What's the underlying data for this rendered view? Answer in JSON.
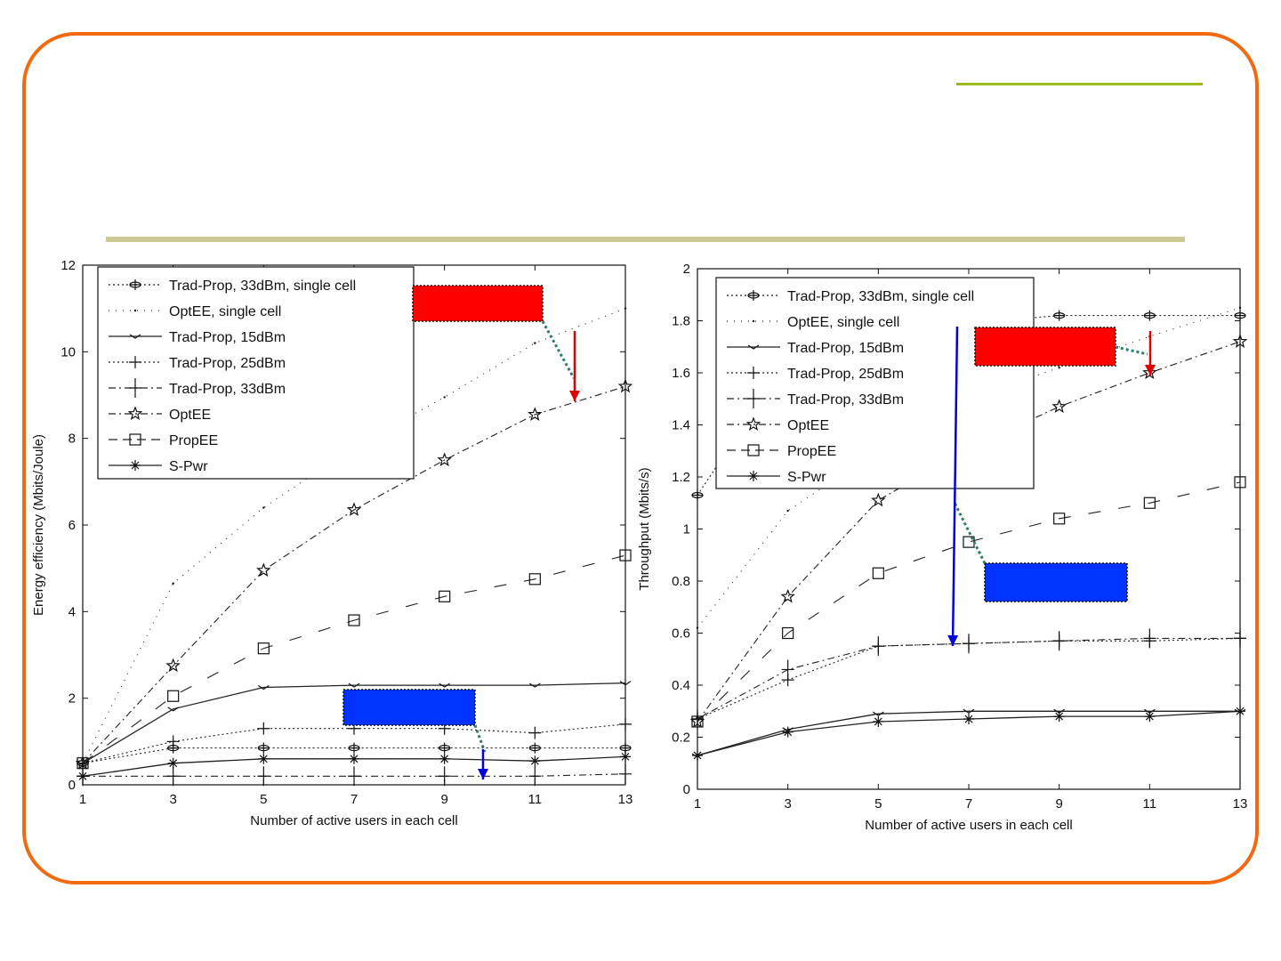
{
  "colors": {
    "frame": "#f26a10",
    "accent_top": "#9bbb1a",
    "accent_mid": "#c9c991",
    "red_box": "#ff0000",
    "blue_box": "#0033ff",
    "red_arrow": "#e00000",
    "blue_arrow": "#0000dd",
    "callout_line": "#2e7d6e"
  },
  "chart_data": [
    {
      "type": "line",
      "xlabel": "Number of active users in each cell",
      "ylabel": "Energy efficiency (Mbits/Joule)",
      "xlim": [
        1,
        13
      ],
      "ylim": [
        0,
        12
      ],
      "xticks": [
        1,
        3,
        5,
        7,
        9,
        11,
        13
      ],
      "yticks": [
        0,
        2,
        4,
        6,
        8,
        10,
        12
      ],
      "legend_position": "top-left",
      "x": [
        1,
        3,
        5,
        7,
        9,
        11,
        13
      ],
      "series": [
        {
          "name": "Trad-Prop, 33dBm, single cell",
          "style": "dotted",
          "marker": "plus-circle",
          "values": [
            0.5,
            0.85,
            0.85,
            0.85,
            0.85,
            0.85,
            0.85
          ]
        },
        {
          "name": "OptEE, single cell",
          "style": "solid-light",
          "marker": "dot",
          "values": [
            0.5,
            4.65,
            6.4,
            7.8,
            8.95,
            10.2,
            11.0
          ]
        },
        {
          "name": "Trad-Prop, 15dBm",
          "style": "solid",
          "marker": "tri",
          "values": [
            0.5,
            1.75,
            2.25,
            2.3,
            2.3,
            2.3,
            2.35
          ]
        },
        {
          "name": "Trad-Prop, 25dBm",
          "style": "dotted",
          "marker": "plus",
          "values": [
            0.5,
            1.0,
            1.3,
            1.3,
            1.3,
            1.2,
            1.4
          ]
        },
        {
          "name": "Trad-Prop, 33dBm",
          "style": "dashdot",
          "marker": "plus-tall",
          "values": [
            0.2,
            0.2,
            0.2,
            0.2,
            0.2,
            0.2,
            0.25
          ]
        },
        {
          "name": "OptEE",
          "style": "dashdot",
          "marker": "star",
          "values": [
            0.5,
            2.75,
            4.95,
            6.35,
            7.5,
            8.55,
            9.2
          ]
        },
        {
          "name": "PropEE",
          "style": "dashed",
          "marker": "square",
          "values": [
            0.5,
            2.05,
            3.15,
            3.8,
            4.35,
            4.75,
            5.3
          ]
        },
        {
          "name": "S-Pwr",
          "style": "solid",
          "marker": "asterisk",
          "values": [
            0.2,
            0.5,
            0.6,
            0.6,
            0.6,
            0.55,
            0.65
          ]
        }
      ]
    },
    {
      "type": "line",
      "xlabel": "Number of active users in each cell",
      "ylabel": "Throughput (Mbits/s)",
      "xlim": [
        1,
        13
      ],
      "ylim": [
        0,
        2
      ],
      "xticks": [
        1,
        3,
        5,
        7,
        9,
        11,
        13
      ],
      "yticks": [
        0,
        0.2,
        0.4,
        0.6,
        0.8,
        1,
        1.2,
        1.4,
        1.6,
        1.8,
        2
      ],
      "legend_position": "top-left",
      "x": [
        1,
        3,
        5,
        7,
        9,
        11,
        13
      ],
      "series": [
        {
          "name": "Trad-Prop, 33dBm, single cell",
          "style": "dotted",
          "marker": "plus-circle",
          "values": [
            1.13,
            1.65,
            1.72,
            1.79,
            1.82,
            1.82,
            1.82
          ]
        },
        {
          "name": "OptEE, single cell",
          "style": "solid-light",
          "marker": "dot",
          "values": [
            0.62,
            1.07,
            1.3,
            1.5,
            1.62,
            1.74,
            1.85
          ]
        },
        {
          "name": "Trad-Prop, 15dBm",
          "style": "solid",
          "marker": "tri",
          "values": [
            0.13,
            0.23,
            0.29,
            0.3,
            0.3,
            0.3,
            0.3
          ]
        },
        {
          "name": "Trad-Prop, 25dBm",
          "style": "dotted",
          "marker": "plus",
          "values": [
            0.27,
            0.42,
            0.55,
            0.56,
            0.57,
            0.57,
            0.58
          ]
        },
        {
          "name": "Trad-Prop, 33dBm",
          "style": "dashdot",
          "marker": "plus-tall",
          "values": [
            0.27,
            0.46,
            0.55,
            0.56,
            0.57,
            0.58,
            0.58
          ]
        },
        {
          "name": "OptEE",
          "style": "dashdot",
          "marker": "star",
          "values": [
            0.26,
            0.74,
            1.11,
            1.31,
            1.47,
            1.6,
            1.72
          ]
        },
        {
          "name": "PropEE",
          "style": "dashed",
          "marker": "square",
          "values": [
            0.26,
            0.6,
            0.83,
            0.95,
            1.04,
            1.1,
            1.18
          ]
        },
        {
          "name": "S-Pwr",
          "style": "solid",
          "marker": "asterisk",
          "values": [
            0.13,
            0.22,
            0.26,
            0.27,
            0.28,
            0.28,
            0.3
          ]
        }
      ]
    }
  ]
}
